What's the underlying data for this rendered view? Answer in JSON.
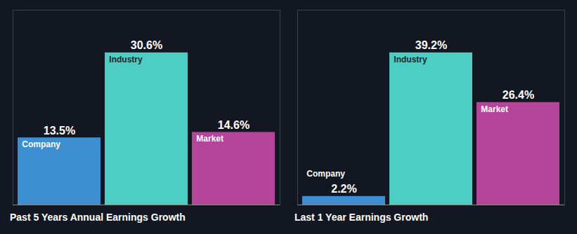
{
  "chart_data": [
    {
      "type": "bar",
      "title": "Past 5 Years Annual Earnings Growth",
      "categories": [
        "Company",
        "Industry",
        "Market"
      ],
      "values": [
        13.5,
        30.6,
        14.6
      ],
      "value_labels": [
        "13.5%",
        "30.6%",
        "14.6%"
      ],
      "colors": [
        "#3d8fd1",
        "#4ecdc4",
        "#b5449b"
      ],
      "ylim": [
        0,
        39.168
      ],
      "data_labels": true,
      "tick_labels": false,
      "grid": false
    },
    {
      "type": "bar",
      "title": "Last 1 Year Earnings Growth",
      "categories": [
        "Company",
        "Industry",
        "Market"
      ],
      "values": [
        2.2,
        39.2,
        26.4
      ],
      "value_labels": [
        "2.2%",
        "39.2%",
        "26.4%"
      ],
      "colors": [
        "#3d8fd1",
        "#4ecdc4",
        "#b5449b"
      ],
      "ylim": [
        0,
        50.176
      ],
      "data_labels": true,
      "tick_labels": false,
      "grid": false
    }
  ]
}
